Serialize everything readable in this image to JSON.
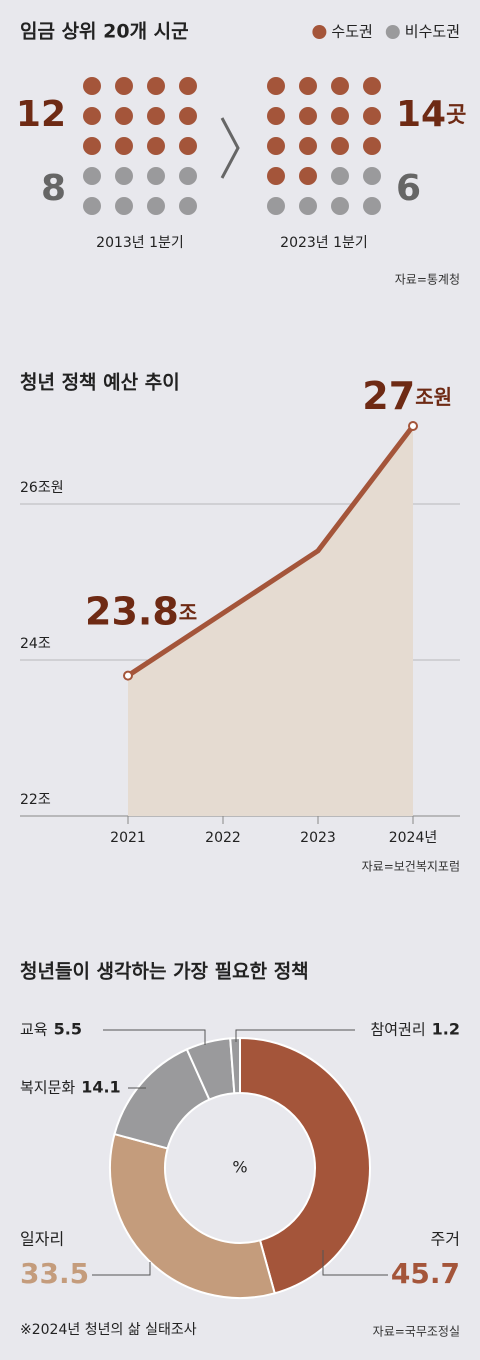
{
  "chart_data": [
    {
      "type": "dot-grid",
      "title": "임금 상위 20개 시군",
      "categories": [
        "2013년 1분기",
        "2023년 1분기"
      ],
      "series": [
        {
          "name": "수도권",
          "color": "#a4553a",
          "values": [
            12,
            14
          ],
          "value_labels": [
            "12",
            "14곳"
          ]
        },
        {
          "name": "비수도권",
          "color": "#9a9a9c",
          "values": [
            8,
            6
          ]
        }
      ],
      "source": "자료=통계청"
    },
    {
      "type": "area-line",
      "title": "청년 정책 예산 추이",
      "categories": [
        "2021",
        "2022",
        "2023",
        "2024년"
      ],
      "values": [
        23.8,
        24.6,
        25.4,
        27
      ],
      "value_labels": [
        "23.8조",
        null,
        null,
        "27조원"
      ],
      "color": "#a4553a",
      "area_color": "#e5dbd1",
      "ylim": [
        22,
        28
      ],
      "yticks": [
        {
          "value": 22,
          "label": "22조"
        },
        {
          "value": 24,
          "label": "24조"
        },
        {
          "value": 26,
          "label": "26조원"
        }
      ],
      "grid": true,
      "source": "자료=보건복지포럼"
    },
    {
      "type": "donut",
      "title": "청년들이 생각하는 가장 필요한 정책",
      "center_label": "%",
      "categories": [
        "주거",
        "일자리",
        "복지문화",
        "교육",
        "참여권리"
      ],
      "values": [
        45.7,
        33.5,
        14.1,
        5.5,
        1.2
      ],
      "colors": [
        "#a4553a",
        "#c49c7c",
        "#9a9a9c",
        "#9a9a9c",
        "#9a9a9c"
      ],
      "note": "※2024년 청년의 삶 실태조사",
      "source": "자료=국무조정실"
    }
  ]
}
